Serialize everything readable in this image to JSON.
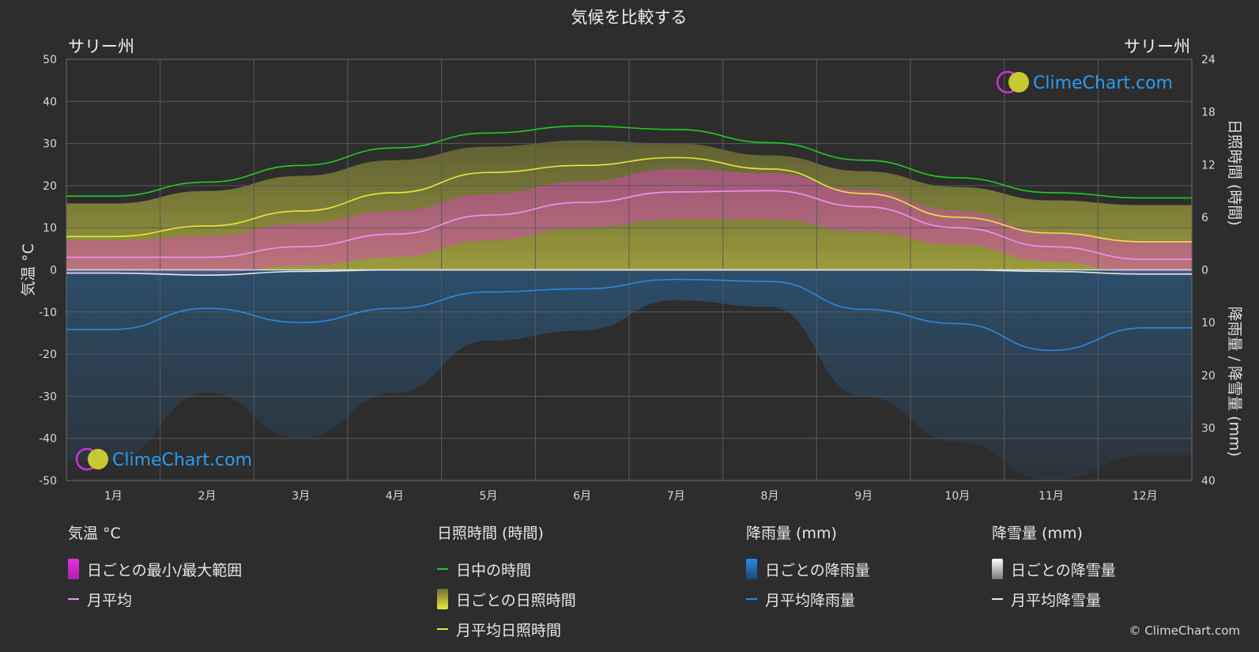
{
  "title": "気候を比較する",
  "location_left": "サリー州",
  "location_right": "サリー州",
  "copyright": "© ClimeChart.com",
  "logo_text": "ClimeChart.com",
  "colors": {
    "daylight": "#22cc22",
    "sunshine_avg": "#e8e83a",
    "sunshine_daily": "#a8a832",
    "temp_avg": "#f58ef5",
    "temp_range": "#e040c8",
    "rain_avg": "#2a88e0",
    "rain_daily": "#2a6aa0",
    "snow_avg": "#e8e8e8",
    "snow_daily": "#9a9a9a",
    "logo_text": "#2a9df4"
  },
  "legend": {
    "temperature": {
      "header": "気温 °C",
      "range": "日ごとの最小/最大範囲",
      "avg": "月平均"
    },
    "sunshine": {
      "header": "日照時間 (時間)",
      "daylight": "日中の時間",
      "daily": "日ごとの日照時間",
      "avg": "月平均日照時間"
    },
    "rain": {
      "header": "降雨量 (mm)",
      "daily": "日ごとの降雨量",
      "avg": "月平均降雨量"
    },
    "snow": {
      "header": "降雪量 (mm)",
      "daily": "日ごとの降雪量",
      "avg": "月平均降雪量"
    }
  },
  "chart_data": {
    "type": "line",
    "months": [
      "1月",
      "2月",
      "3月",
      "4月",
      "5月",
      "6月",
      "7月",
      "8月",
      "9月",
      "10月",
      "11月",
      "12月"
    ],
    "y_left": {
      "label": "気温 °C",
      "range": [
        -50,
        50
      ],
      "ticks": [
        50,
        40,
        30,
        20,
        10,
        0,
        -10,
        -20,
        -30,
        -40,
        -50
      ]
    },
    "y_right_top": {
      "label": "日照時間 (時間)",
      "range": [
        0,
        24
      ],
      "ticks": [
        24,
        18,
        12,
        6,
        0
      ]
    },
    "y_right_bottom": {
      "label": "降雨量 / 降雪量 (mm)",
      "range": [
        0,
        40
      ],
      "ticks": [
        0,
        10,
        20,
        30,
        40
      ]
    },
    "grid": true,
    "series": [
      {
        "name": "日中の時間",
        "unit": "hours",
        "values": [
          8.4,
          10.0,
          11.9,
          13.9,
          15.6,
          16.4,
          16.0,
          14.5,
          12.5,
          10.5,
          8.8,
          8.2
        ]
      },
      {
        "name": "月平均日照時間",
        "unit": "hours",
        "values": [
          3.8,
          5.0,
          6.7,
          8.8,
          11.1,
          11.9,
          12.8,
          11.5,
          8.7,
          6.0,
          4.2,
          3.2
        ]
      },
      {
        "name": "月平均",
        "unit": "°C",
        "values": [
          3.0,
          3.0,
          5.5,
          8.5,
          13.0,
          16.0,
          18.5,
          18.8,
          15.0,
          10.0,
          5.5,
          2.5
        ]
      },
      {
        "name": "月平均降雨量",
        "unit": "mm",
        "values": [
          11.3,
          7.3,
          10.0,
          7.3,
          4.2,
          3.6,
          1.8,
          2.2,
          7.5,
          10.2,
          15.3,
          11.0
        ]
      },
      {
        "name": "月平均降雪量",
        "unit": "mm",
        "values": [
          0.6,
          1.0,
          0.3,
          0.0,
          0.0,
          0.0,
          0.0,
          0.0,
          0.0,
          0.0,
          0.3,
          0.8
        ]
      }
    ],
    "temp_range": {
      "name": "日ごとの最小/最大範囲",
      "min": [
        -1,
        -1,
        1,
        3,
        7,
        10,
        12,
        12,
        9,
        6,
        2,
        -1
      ],
      "max": [
        7,
        8,
        11,
        14,
        18,
        21,
        24,
        23,
        19,
        14,
        9,
        7
      ]
    }
  }
}
